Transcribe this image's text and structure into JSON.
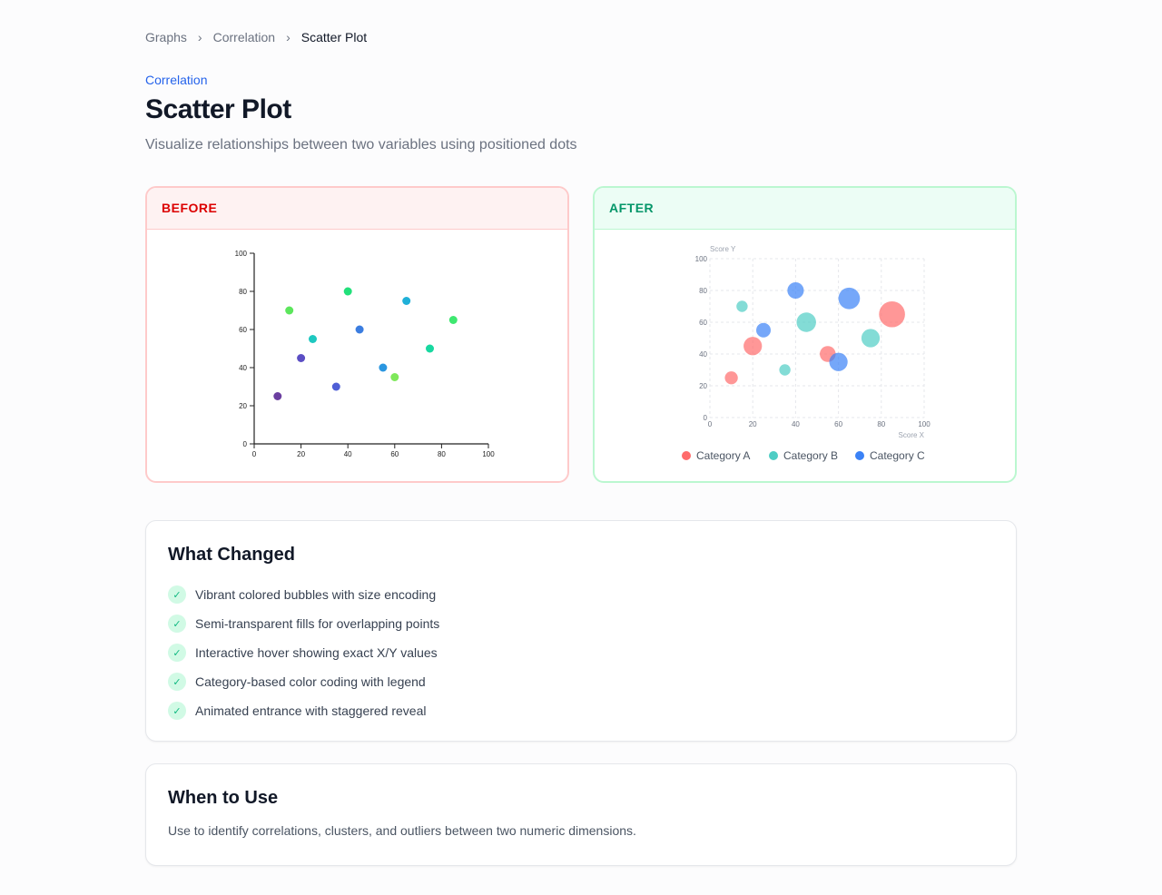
{
  "breadcrumb": [
    "Graphs",
    "Correlation",
    "Scatter Plot"
  ],
  "eyebrow": "Correlation",
  "title": "Scatter Plot",
  "subtitle": "Visualize relationships between two variables using positioned dots",
  "before": {
    "label": "BEFORE"
  },
  "after": {
    "label": "AFTER"
  },
  "chart_data": [
    {
      "type": "scatter",
      "panel": "before",
      "xlim": [
        0,
        100
      ],
      "ylim": [
        0,
        100
      ],
      "xticks": [
        0,
        20,
        40,
        60,
        80,
        100
      ],
      "yticks": [
        0,
        20,
        40,
        60,
        80,
        100
      ],
      "grid": false,
      "points": [
        {
          "x": 10,
          "y": 25,
          "color": "#6b3fa0"
        },
        {
          "x": 15,
          "y": 70,
          "color": "#5ce65c"
        },
        {
          "x": 20,
          "y": 45,
          "color": "#5b4ec4"
        },
        {
          "x": 25,
          "y": 55,
          "color": "#1ec8c0"
        },
        {
          "x": 35,
          "y": 30,
          "color": "#4f5fd6"
        },
        {
          "x": 40,
          "y": 80,
          "color": "#22e07a"
        },
        {
          "x": 45,
          "y": 60,
          "color": "#3b7de0"
        },
        {
          "x": 55,
          "y": 40,
          "color": "#2a96e0"
        },
        {
          "x": 60,
          "y": 35,
          "color": "#7ee85a"
        },
        {
          "x": 65,
          "y": 75,
          "color": "#1fb0d8"
        },
        {
          "x": 75,
          "y": 50,
          "color": "#18d8a0"
        },
        {
          "x": 85,
          "y": 65,
          "color": "#3ee870"
        }
      ]
    },
    {
      "type": "scatter",
      "panel": "after",
      "xlabel": "Score X",
      "ylabel": "Score Y",
      "xlim": [
        0,
        100
      ],
      "ylim": [
        0,
        100
      ],
      "xticks": [
        0,
        20,
        40,
        60,
        80,
        100
      ],
      "yticks": [
        0,
        20,
        40,
        60,
        80,
        100
      ],
      "grid": true,
      "legend": "bottom",
      "series": [
        {
          "name": "Category A",
          "color": "#ff6b6b",
          "points": [
            {
              "x": 10,
              "y": 25,
              "size": 20
            },
            {
              "x": 20,
              "y": 45,
              "size": 40
            },
            {
              "x": 55,
              "y": 40,
              "size": 30
            },
            {
              "x": 85,
              "y": 65,
              "size": 80
            }
          ]
        },
        {
          "name": "Category B",
          "color": "#4ecdc4",
          "points": [
            {
              "x": 15,
              "y": 70,
              "size": 15
            },
            {
              "x": 35,
              "y": 30,
              "size": 15
            },
            {
              "x": 45,
              "y": 60,
              "size": 45
            },
            {
              "x": 75,
              "y": 50,
              "size": 40
            }
          ]
        },
        {
          "name": "Category C",
          "color": "#3b82f6",
          "points": [
            {
              "x": 25,
              "y": 55,
              "size": 25
            },
            {
              "x": 40,
              "y": 80,
              "size": 32
            },
            {
              "x": 60,
              "y": 35,
              "size": 40
            },
            {
              "x": 65,
              "y": 75,
              "size": 55
            }
          ]
        }
      ]
    }
  ],
  "what_changed": {
    "title": "What Changed",
    "items": [
      "Vibrant colored bubbles with size encoding",
      "Semi-transparent fills for overlapping points",
      "Interactive hover showing exact X/Y values",
      "Category-based color coding with legend",
      "Animated entrance with staggered reveal"
    ]
  },
  "when_to_use": {
    "title": "When to Use",
    "text": "Use to identify correlations, clusters, and outliers between two numeric dimensions."
  },
  "icons": {
    "check": "check-icon",
    "separator": "chevron-right-icon"
  }
}
